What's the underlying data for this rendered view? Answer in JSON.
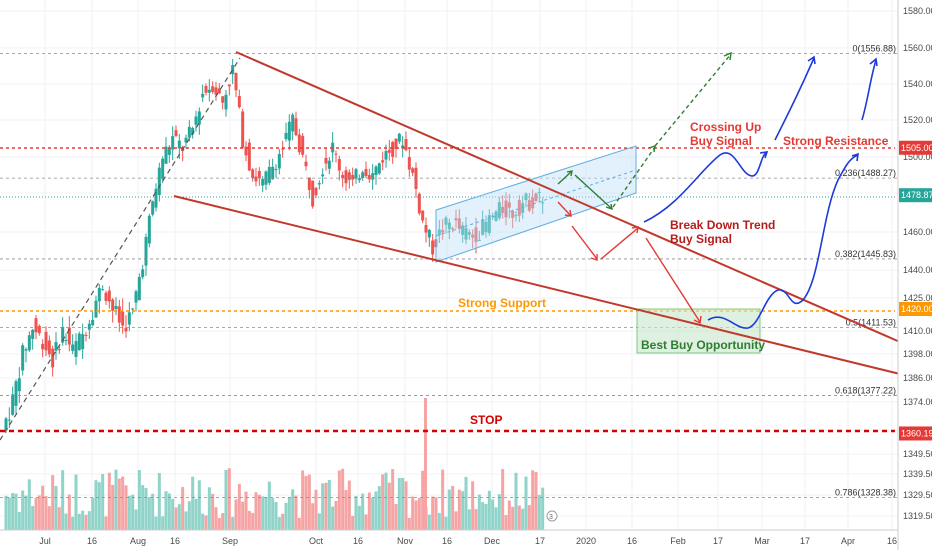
{
  "chart_data": {
    "type": "candlestick",
    "symbol_note": "",
    "y_axis": {
      "ylim": [
        1313,
        1585
      ],
      "ticks": [
        "1580.00",
        "1560.00",
        "1540.00",
        "1520.00",
        "1500.00",
        "1480.00",
        "1460.00",
        "1440.00",
        "1425.00",
        "1410.00",
        "1398.00",
        "1386.00",
        "1374.00",
        "1362.00",
        "1349.50",
        "1339.50",
        "1329.50",
        "1319.50"
      ]
    },
    "x_axis": {
      "ticks": [
        "Jul",
        "16",
        "Aug",
        "16",
        "Sep",
        "Oct",
        "16",
        "Nov",
        "16",
        "Dec",
        "17",
        "2020",
        "16",
        "Feb",
        "17",
        "Mar",
        "17",
        "Apr",
        "16"
      ]
    },
    "price_tags": [
      {
        "label": "1505.00",
        "value": 1505.0,
        "color": "#e53935"
      },
      {
        "label": "1478.87",
        "value": 1478.87,
        "color": "#26a69a"
      },
      {
        "label": "1420.00",
        "value": 1420.0,
        "color": "#ff9800"
      },
      {
        "label": "1360.19",
        "value": 1360.19,
        "color": "#e53935"
      }
    ],
    "fib_levels": [
      {
        "label": "0(1556.88)",
        "value": 1556.88
      },
      {
        "label": "0.236(1488.27)",
        "value": 1488.27
      },
      {
        "label": "0.382(1445.83)",
        "value": 1445.83
      },
      {
        "label": "0.5(1411.53)",
        "value": 1411.53
      },
      {
        "label": "0.618(1377.22)",
        "value": 1377.22
      },
      {
        "label": "0.786(1328.38)",
        "value": 1328.38
      }
    ],
    "annotations": {
      "crossing_up_line1": "Crossing Up",
      "crossing_up_line2": "Buy Signal",
      "strong_resistance": "Strong Resistance",
      "break_down_line1": "Break Down Trend",
      "break_down_line2": "Buy Signal",
      "strong_support": "Strong Support",
      "best_buy": "Best Buy Opportunity",
      "stop": "STOP"
    },
    "candles_note": "Daily OHLC approx: rally from ~1360 (early Jul) to ~1557 (early Sep), consolidation 1460-1540 through Oct, dip to ~1450 early Nov, ascending channel to ~1478 by mid Dec."
  }
}
